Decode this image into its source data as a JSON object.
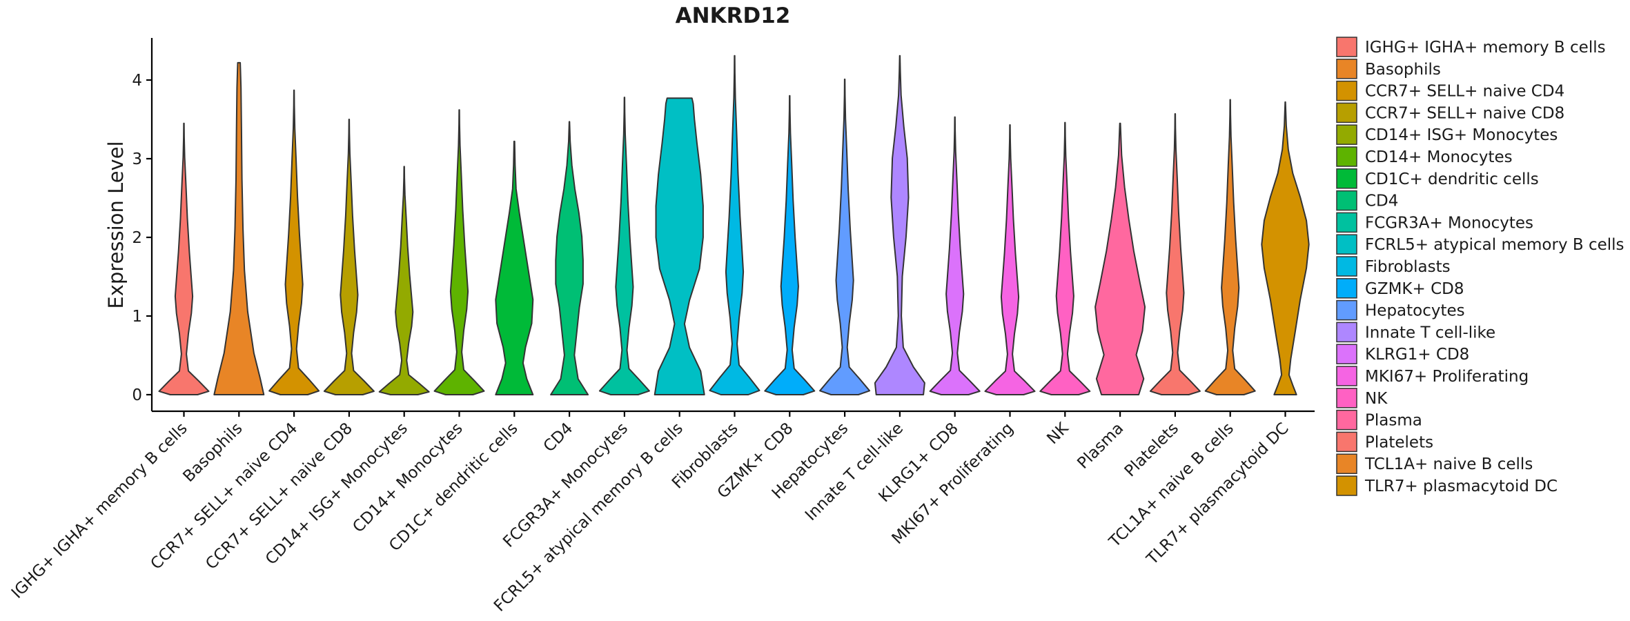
{
  "chart_data": {
    "type": "violin",
    "title": "ANKRD12",
    "xlabel": "",
    "ylabel": "Expression Level",
    "ylim": [
      -0.22,
      4.5
    ],
    "yticks": [
      0,
      1,
      2,
      3,
      4
    ],
    "categories": [
      "IGHG+ IGHA+ memory B cells",
      "Basophils",
      "CCR7+ SELL+ naive CD4",
      "CCR7+ SELL+ naive CD8",
      "CD14+ ISG+ Monocytes",
      "CD14+ Monocytes",
      "CD1C+ dendritic cells",
      "CD4",
      "FCGR3A+ Monocytes",
      "FCRL5+ atypical memory B cells",
      "Fibroblasts",
      "GZMK+ CD8",
      "Hepatocytes",
      "Innate T cell-like",
      "KLRG1+ CD8",
      "MKI67+ Proliferating",
      "NK",
      "Plasma",
      "Platelets",
      "TCL1A+ naive B cells",
      "TLR7+ plasmacytoid DC"
    ],
    "max_values": [
      3.45,
      4.22,
      3.87,
      3.5,
      2.9,
      3.62,
      3.22,
      3.47,
      3.78,
      3.77,
      4.31,
      3.8,
      4.01,
      4.31,
      3.53,
      3.43,
      3.46,
      3.45,
      3.57,
      3.75,
      3.72
    ],
    "colors": [
      "#F8766D",
      "#E88526",
      "#D39200",
      "#B79F00",
      "#93AA00",
      "#5EB300",
      "#00BA38",
      "#00BF74",
      "#00C19F",
      "#00BFC4",
      "#00B9E3",
      "#00ADFA",
      "#619CFF",
      "#AE87FF",
      "#DB72FB",
      "#F564E3",
      "#FF61C3",
      "#FF689F",
      "#F8766D",
      "#E88526",
      "#D39200"
    ],
    "legend": {
      "position": "right",
      "entries": [
        " IGHG+ IGHA+ memory B cells",
        "Basophils",
        "CCR7+ SELL+ naive CD4",
        "CCR7+ SELL+ naive CD8",
        "CD14+ ISG+ Monocytes",
        "CD14+ Monocytes",
        "CD1C+ dendritic cells",
        "CD4",
        "FCGR3A+ Monocytes",
        "FCRL5+ atypical memory B cells",
        "Fibroblasts",
        "GZMK+ CD8",
        "Hepatocytes",
        "Innate T cell-like",
        "KLRG1+ CD8",
        "MKI67+ Proliferating",
        "NK",
        "Plasma",
        "Platelets",
        "TCL1A+ naive B cells",
        "TLR7+ plasmacytoid DC"
      ]
    }
  }
}
